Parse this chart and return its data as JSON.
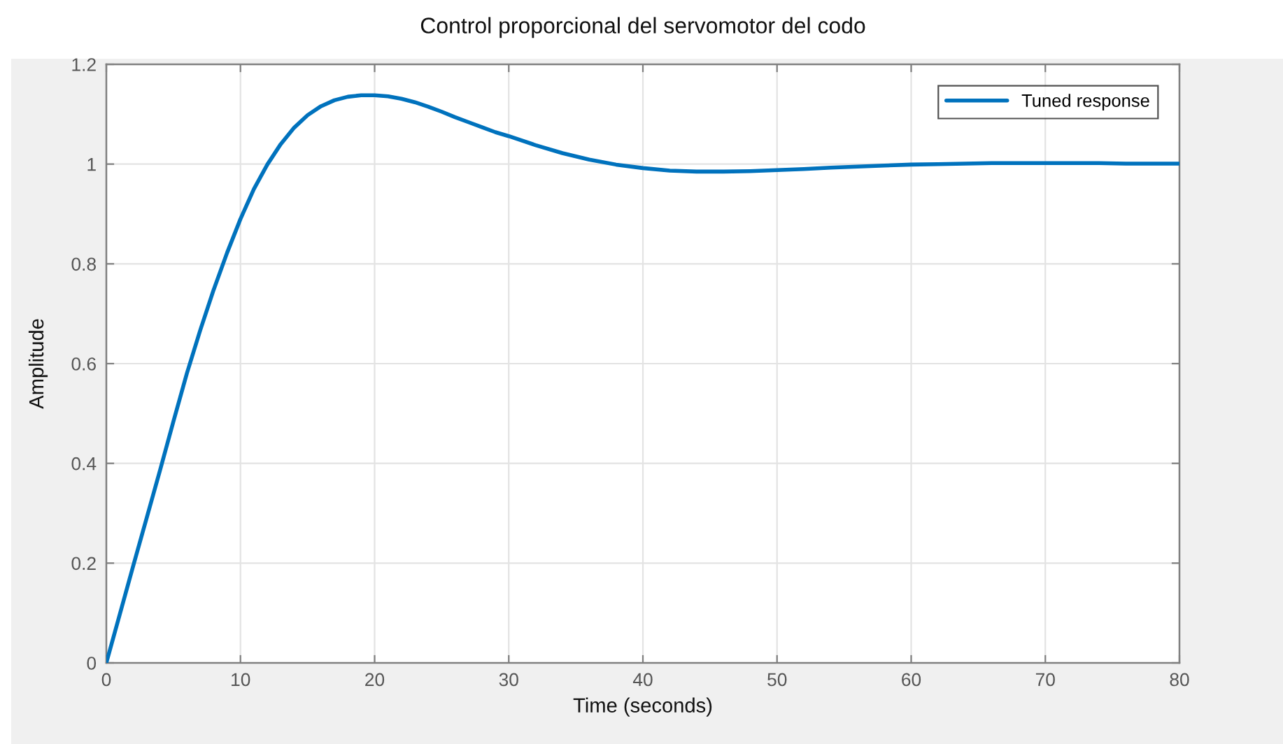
{
  "chart_data": {
    "type": "line",
    "title": "Control proporcional del servomotor del codo",
    "xlabel": "Time (seconds)",
    "ylabel": "Amplitude",
    "x": [
      0,
      1,
      2,
      3,
      4,
      5,
      6,
      7,
      8,
      9,
      10,
      11,
      12,
      13,
      14,
      15,
      16,
      17,
      18,
      19,
      20,
      21,
      22,
      23,
      24,
      25,
      26,
      27,
      28,
      29,
      30,
      32,
      34,
      36,
      38,
      40,
      42,
      44,
      46,
      48,
      50,
      52,
      54,
      56,
      58,
      60,
      62,
      64,
      66,
      68,
      70,
      72,
      74,
      76,
      78,
      80
    ],
    "series": [
      {
        "name": "Tuned response",
        "color": "#0072bd",
        "values": [
          0,
          0.097,
          0.194,
          0.29,
          0.386,
          0.484,
          0.58,
          0.667,
          0.748,
          0.822,
          0.89,
          0.95,
          0.999,
          1.04,
          1.073,
          1.098,
          1.116,
          1.128,
          1.135,
          1.138,
          1.138,
          1.136,
          1.131,
          1.124,
          1.115,
          1.105,
          1.094,
          1.084,
          1.074,
          1.064,
          1.056,
          1.038,
          1.022,
          1.009,
          0.999,
          0.992,
          0.987,
          0.985,
          0.985,
          0.986,
          0.988,
          0.99,
          0.993,
          0.995,
          0.997,
          0.999,
          1.0,
          1.001,
          1.002,
          1.002,
          1.002,
          1.002,
          1.002,
          1.001,
          1.001,
          1.001
        ]
      }
    ],
    "xlim": [
      0,
      80
    ],
    "ylim": [
      0,
      1.2
    ],
    "xticks": [
      0,
      10,
      20,
      30,
      40,
      50,
      60,
      70,
      80
    ],
    "yticks": [
      0,
      0.2,
      0.4,
      0.6,
      0.8,
      1,
      1.2
    ],
    "grid": true,
    "legend": "top right",
    "line_style": "solid"
  }
}
